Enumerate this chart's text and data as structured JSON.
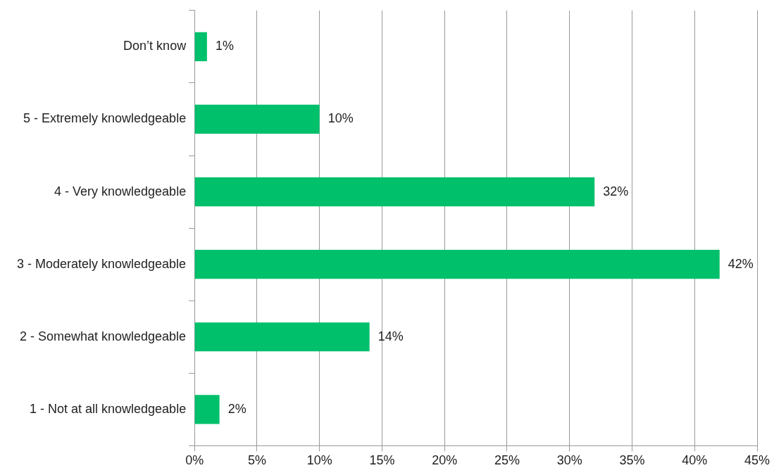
{
  "chart_data": {
    "type": "bar",
    "orientation": "horizontal",
    "categories": [
      "Don’t know",
      "5 - Extremely knowledgeable",
      "4 - Very knowledgeable",
      "3 - Moderately knowledgeable",
      "2 - Somewhat knowledgeable",
      "1 - Not at all knowledgeable"
    ],
    "values": [
      1,
      10,
      32,
      42,
      14,
      2
    ],
    "value_labels": [
      "1%",
      "10%",
      "32%",
      "42%",
      "14%",
      "2%"
    ],
    "color": "#00c06b",
    "xlim": [
      0,
      45
    ],
    "xticks": [
      {
        "value": 0,
        "label": "0%"
      },
      {
        "value": 5,
        "label": "5%"
      },
      {
        "value": 10,
        "label": "10%"
      },
      {
        "value": 15,
        "label": "15%"
      },
      {
        "value": 20,
        "label": "20%"
      },
      {
        "value": 25,
        "label": "25%"
      },
      {
        "value": 30,
        "label": "30%"
      },
      {
        "value": 35,
        "label": "35%"
      },
      {
        "value": 40,
        "label": "40%"
      },
      {
        "value": 45,
        "label": "45%"
      }
    ],
    "grid": "x",
    "legend": false
  }
}
